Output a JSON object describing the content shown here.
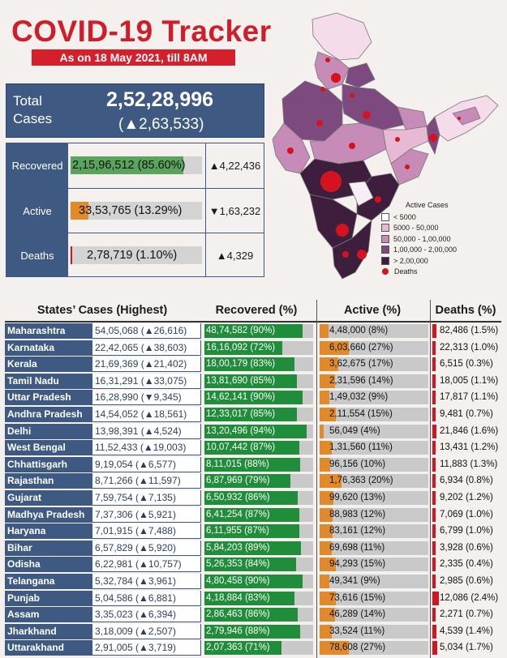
{
  "header": {
    "title": "COVID-19 Tracker",
    "subtitle": "As on 18 May 2021, till 8AM"
  },
  "total": {
    "label": "Total Cases",
    "value": "2,52,28,996",
    "delta": "(▲2,63,533)"
  },
  "summary": [
    {
      "label": "Recovered",
      "text": "2,15,96,512 (85.60%)",
      "fraction": 0.856,
      "color": "#5aa55e",
      "delta": "▲4,22,436"
    },
    {
      "label": "Active",
      "text": "33,53,765 (13.29%)",
      "fraction": 0.1329,
      "color": "#e08a2c",
      "delta": "▼1,63,232"
    },
    {
      "label": "Deaths",
      "text": "2,78,719 (1.10%)",
      "fraction": 0.011,
      "color": "#d6141f",
      "delta": "▲4,329"
    }
  ],
  "legend": {
    "title": "Active Cases",
    "items": [
      {
        "label": "< 5000",
        "color": "#ffffff"
      },
      {
        "label": "5000 - 50,000",
        "color": "#e8b9d4"
      },
      {
        "label": "50,000 - 1,00,000",
        "color": "#c68bb7"
      },
      {
        "label": "1,00,000 - 2,00,000",
        "color": "#7d4a7f"
      },
      {
        "label": "> 2,00,000",
        "color": "#3d1f3d"
      }
    ],
    "deaths_label": "Deaths"
  },
  "table_headers": {
    "state": "States’ Cases (Highest)",
    "recovered": "Recovered (%)",
    "active": "Active (%)",
    "deaths": "Deaths (%)"
  },
  "chart_data": {
    "type": "table",
    "columns": [
      "State",
      "Cases",
      "Recovered",
      "Active",
      "Deaths"
    ],
    "rows": [
      {
        "state": "Maharashtra",
        "cases": "54,05,068 (▲26,616)",
        "recovered": "48,74,582 (90%)",
        "rec_pct": 90,
        "active": "4,48,000 (8%)",
        "act_pct": 8,
        "deaths": "82,486 (1.5%)",
        "dth_pct": 1.5
      },
      {
        "state": "Karnataka",
        "cases": "22,42,065 (▲38,603)",
        "recovered": "16,16,092 (72%)",
        "rec_pct": 72,
        "active": "6,03,660 (27%)",
        "act_pct": 27,
        "deaths": "22,313 (1.0%)",
        "dth_pct": 1.0
      },
      {
        "state": "Kerala",
        "cases": "21,69,369 (▲21,402)",
        "recovered": "18,00,179 (83%)",
        "rec_pct": 83,
        "active": "3,62,675 (17%)",
        "act_pct": 17,
        "deaths": "6,515 (0.3%)",
        "dth_pct": 0.3
      },
      {
        "state": "Tamil Nadu",
        "cases": "16,31,291 (▲33,075)",
        "recovered": "13,81,690 (85%)",
        "rec_pct": 85,
        "active": "2,31,596 (14%)",
        "act_pct": 14,
        "deaths": "18,005 (1.1%)",
        "dth_pct": 1.1
      },
      {
        "state": "Uttar Pradesh",
        "cases": "16,28,990 (▼9,345)",
        "recovered": "14,62,141 (90%)",
        "rec_pct": 90,
        "active": "1,49,032 (9%)",
        "act_pct": 9,
        "deaths": "17,817 (1.1%)",
        "dth_pct": 1.1
      },
      {
        "state": "Andhra Pradesh",
        "cases": "14,54,052 (▲18,561)",
        "recovered": "12,33,017 (85%)",
        "rec_pct": 85,
        "active": "2,11,554 (15%)",
        "act_pct": 15,
        "deaths": "9,481 (0.7%)",
        "dth_pct": 0.7
      },
      {
        "state": "Delhi",
        "cases": "13,98,391 (▲4,524)",
        "recovered": "13,20,496 (94%)",
        "rec_pct": 94,
        "active": "56,049 (4%)",
        "act_pct": 4,
        "deaths": "21,846 (1.6%)",
        "dth_pct": 1.6
      },
      {
        "state": "West Bengal",
        "cases": "11,52,433 (▲19,003)",
        "recovered": "10,07,442 (87%)",
        "rec_pct": 87,
        "active": "1,31,560 (11%)",
        "act_pct": 11,
        "deaths": "13,431 (1.2%)",
        "dth_pct": 1.2
      },
      {
        "state": "Chhattisgarh",
        "cases": "9,19,054 (▲6,577)",
        "recovered": "8,11,015 (88%)",
        "rec_pct": 88,
        "active": "96,156 (10%)",
        "act_pct": 10,
        "deaths": "11,883 (1.3%)",
        "dth_pct": 1.3
      },
      {
        "state": "Rajasthan",
        "cases": "8,71,266 (▲11,597)",
        "recovered": "6,87,969 (79%)",
        "rec_pct": 79,
        "active": "1,76,363 (20%)",
        "act_pct": 20,
        "deaths": "6,934 (0.8%)",
        "dth_pct": 0.8
      },
      {
        "state": "Gujarat",
        "cases": "7,59,754 (▲7,135)",
        "recovered": "6,50,932 (86%)",
        "rec_pct": 86,
        "active": "99,620 (13%)",
        "act_pct": 13,
        "deaths": "9,202 (1.2%)",
        "dth_pct": 1.2
      },
      {
        "state": "Madhya Pradesh",
        "cases": "7,37,306 (▲5,921)",
        "recovered": "6,41,254 (87%)",
        "rec_pct": 87,
        "active": "88,983 (12%)",
        "act_pct": 12,
        "deaths": "7,069 (1.0%)",
        "dth_pct": 1.0
      },
      {
        "state": "Haryana",
        "cases": "7,01,915 (▲7,488)",
        "recovered": "6,11,955 (87%)",
        "rec_pct": 87,
        "active": "83,161 (12%)",
        "act_pct": 12,
        "deaths": "6,799 (1.0%)",
        "dth_pct": 1.0
      },
      {
        "state": "Bihar",
        "cases": "6,57,829 (▲5,920)",
        "recovered": "5,84,203 (89%)",
        "rec_pct": 89,
        "active": "69,698 (11%)",
        "act_pct": 11,
        "deaths": "3,928 (0.6%)",
        "dth_pct": 0.6
      },
      {
        "state": "Odisha",
        "cases": "6,22,981 (▲10,757)",
        "recovered": "5,26,353 (84%)",
        "rec_pct": 84,
        "active": "94,293 (15%)",
        "act_pct": 15,
        "deaths": "2,335 (0.4%)",
        "dth_pct": 0.4
      },
      {
        "state": "Telangana",
        "cases": "5,32,784 (▲3,961)",
        "recovered": "4,80,458 (90%)",
        "rec_pct": 90,
        "active": "49,341 (9%)",
        "act_pct": 9,
        "deaths": "2,985 (0.6%)",
        "dth_pct": 0.6
      },
      {
        "state": "Punjab",
        "cases": "5,04,586 (▲6,881)",
        "recovered": "4,18,884 (83%)",
        "rec_pct": 83,
        "active": "73,616 (15%)",
        "act_pct": 15,
        "deaths": "12,086 (2.4%)",
        "dth_pct": 2.4
      },
      {
        "state": "Assam",
        "cases": "3,35,023 (▲6,394)",
        "recovered": "2,86,463 (86%)",
        "rec_pct": 86,
        "active": "46,289 (14%)",
        "act_pct": 14,
        "deaths": "2,271 (0.7%)",
        "dth_pct": 0.7
      },
      {
        "state": "Jharkhand",
        "cases": "3,18,009 (▲2,507)",
        "recovered": "2,79,946 (88%)",
        "rec_pct": 88,
        "active": "33,524 (11%)",
        "act_pct": 11,
        "deaths": "4,539 (1.4%)",
        "dth_pct": 1.4
      },
      {
        "state": "Uttarakhand",
        "cases": "2,91,005 (▲3,719)",
        "recovered": "2,07,363 (71%)",
        "rec_pct": 71,
        "active": "78,608 (27%)",
        "act_pct": 27,
        "deaths": "5,034 (1.7%)",
        "dth_pct": 1.7
      }
    ]
  }
}
